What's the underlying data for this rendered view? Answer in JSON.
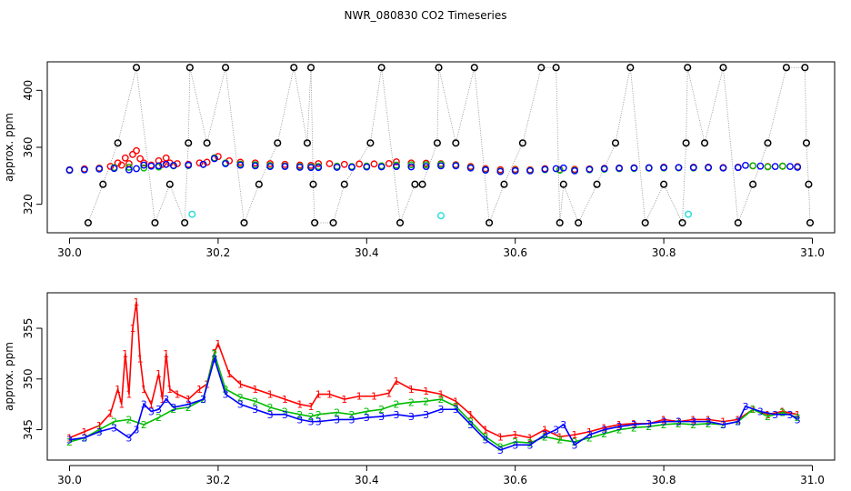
{
  "figure_title": "NWR_080830  CO2 Timeseries",
  "colors": {
    "background": "#ffffff",
    "axis": "#000000",
    "outlier": "#000000",
    "level1": "#ff0000",
    "level2": "#00bb00",
    "level3": "#0000ff",
    "cyan": "#33dddd",
    "connector": "#888888"
  },
  "chart_data": [
    {
      "type": "scatter",
      "title": "",
      "ylabel": "approx. ppm",
      "xlim": [
        29.97,
        31.03
      ],
      "ylim": [
        300,
        420
      ],
      "xticks": [
        30.0,
        30.2,
        30.4,
        30.6,
        30.8,
        31.0
      ],
      "xtick_labels": [
        "30.0",
        "30.2",
        "30.4",
        "30.6",
        "30.8",
        "31.0"
      ],
      "yticks": [
        320,
        360,
        400
      ],
      "ytick_labels": [
        "320",
        "360",
        "400"
      ],
      "lines_connect_points": true,
      "series": [
        {
          "marker": "circle",
          "color": "#000000",
          "points": [
            [
              30.025,
              307
            ],
            [
              30.045,
              334
            ],
            [
              30.065,
              363
            ],
            [
              30.09,
              416
            ],
            [
              30.115,
              307
            ],
            [
              30.135,
              334
            ],
            [
              30.155,
              307
            ],
            [
              30.16,
              363
            ],
            [
              30.162,
              416
            ],
            [
              30.185,
              363
            ],
            [
              30.21,
              416
            ],
            [
              30.235,
              307
            ],
            [
              30.255,
              334
            ],
            [
              30.28,
              363
            ],
            [
              30.302,
              416
            ],
            [
              30.32,
              363
            ],
            [
              30.325,
              416
            ],
            [
              30.328,
              334
            ],
            [
              30.33,
              307
            ],
            [
              30.355,
              307
            ],
            [
              30.37,
              334
            ],
            [
              30.405,
              363
            ],
            [
              30.42,
              416
            ],
            [
              30.445,
              307
            ],
            [
              30.465,
              334
            ],
            [
              30.475,
              334
            ],
            [
              30.495,
              363
            ],
            [
              30.497,
              416
            ],
            [
              30.52,
              363
            ],
            [
              30.545,
              416
            ],
            [
              30.565,
              307
            ],
            [
              30.585,
              334
            ],
            [
              30.61,
              363
            ],
            [
              30.635,
              416
            ],
            [
              30.655,
              416
            ],
            [
              30.66,
              307
            ],
            [
              30.665,
              334
            ],
            [
              30.685,
              307
            ],
            [
              30.71,
              334
            ],
            [
              30.735,
              363
            ],
            [
              30.755,
              416
            ],
            [
              30.775,
              307
            ],
            [
              30.8,
              334
            ],
            [
              30.825,
              307
            ],
            [
              30.83,
              363
            ],
            [
              30.832,
              416
            ],
            [
              30.855,
              363
            ],
            [
              30.88,
              416
            ],
            [
              30.9,
              307
            ],
            [
              30.92,
              334
            ],
            [
              30.94,
              363
            ],
            [
              30.965,
              416
            ],
            [
              30.99,
              416
            ],
            [
              30.992,
              363
            ],
            [
              30.995,
              334
            ],
            [
              30.997,
              307
            ]
          ]
        },
        {
          "marker": "circle",
          "color": "#33dddd",
          "points": [
            [
              30.165,
              313
            ],
            [
              30.5,
              312
            ],
            [
              30.833,
              313
            ]
          ]
        }
      ]
    },
    {
      "type": "line",
      "title": "",
      "ylabel": "approx. ppm",
      "xlim": [
        29.97,
        31.03
      ],
      "ylim": [
        342,
        358.5
      ],
      "xticks": [
        30.0,
        30.2,
        30.4,
        30.6,
        30.8,
        31.0
      ],
      "xtick_labels": [
        "30.0",
        "30.2",
        "30.4",
        "30.6",
        "30.8",
        "31.0"
      ],
      "yticks": [
        345,
        350,
        355
      ],
      "ytick_labels": [
        "345",
        "350",
        "355"
      ],
      "series": [
        {
          "marker": "1",
          "color": "#ff0000",
          "points": [
            [
              30.0,
              344.2
            ],
            [
              30.02,
              344.8
            ],
            [
              30.04,
              345.4
            ],
            [
              30.055,
              346.6
            ],
            [
              30.065,
              349.0
            ],
            [
              30.07,
              347.5
            ],
            [
              30.075,
              352.5
            ],
            [
              30.08,
              348.5
            ],
            [
              30.085,
              355.0
            ],
            [
              30.09,
              357.6
            ],
            [
              30.095,
              352.0
            ],
            [
              30.1,
              349.0
            ],
            [
              30.11,
              347.5
            ],
            [
              30.12,
              350.5
            ],
            [
              30.125,
              348.0
            ],
            [
              30.13,
              352.5
            ],
            [
              30.135,
              349.0
            ],
            [
              30.145,
              348.5
            ],
            [
              30.16,
              348.0
            ],
            [
              30.175,
              349.0
            ],
            [
              30.185,
              349.5
            ],
            [
              30.195,
              352.6
            ],
            [
              30.2,
              353.5
            ],
            [
              30.215,
              350.5
            ],
            [
              30.23,
              349.5
            ],
            [
              30.25,
              349.0
            ],
            [
              30.27,
              348.5
            ],
            [
              30.29,
              348.0
            ],
            [
              30.31,
              347.5
            ],
            [
              30.325,
              347.3
            ],
            [
              30.335,
              348.5
            ],
            [
              30.35,
              348.5
            ],
            [
              30.37,
              348.0
            ],
            [
              30.39,
              348.3
            ],
            [
              30.41,
              348.3
            ],
            [
              30.43,
              348.6
            ],
            [
              30.44,
              349.8
            ],
            [
              30.46,
              349.0
            ],
            [
              30.48,
              348.8
            ],
            [
              30.5,
              348.5
            ],
            [
              30.52,
              347.8
            ],
            [
              30.54,
              346.5
            ],
            [
              30.56,
              345.0
            ],
            [
              30.58,
              344.3
            ],
            [
              30.6,
              344.5
            ],
            [
              30.62,
              344.2
            ],
            [
              30.64,
              345.0
            ],
            [
              30.66,
              344.3
            ],
            [
              30.68,
              344.5
            ],
            [
              30.7,
              344.8
            ],
            [
              30.72,
              345.2
            ],
            [
              30.74,
              345.5
            ],
            [
              30.76,
              345.6
            ],
            [
              30.78,
              345.6
            ],
            [
              30.8,
              346.0
            ],
            [
              30.82,
              345.8
            ],
            [
              30.84,
              346.0
            ],
            [
              30.86,
              346.0
            ],
            [
              30.88,
              345.8
            ],
            [
              30.9,
              346.0
            ],
            [
              30.92,
              347.0
            ],
            [
              30.94,
              346.5
            ],
            [
              30.96,
              346.8
            ],
            [
              30.98,
              346.5
            ]
          ]
        },
        {
          "marker": "2",
          "color": "#00bb00",
          "points": [
            [
              30.0,
              343.8
            ],
            [
              30.02,
              344.2
            ],
            [
              30.04,
              345.0
            ],
            [
              30.06,
              345.8
            ],
            [
              30.08,
              346.0
            ],
            [
              30.1,
              345.5
            ],
            [
              30.12,
              346.2
            ],
            [
              30.14,
              347.0
            ],
            [
              30.16,
              347.2
            ],
            [
              30.18,
              348.0
            ],
            [
              30.195,
              352.5
            ],
            [
              30.21,
              349.0
            ],
            [
              30.23,
              348.2
            ],
            [
              30.25,
              347.8
            ],
            [
              30.27,
              347.2
            ],
            [
              30.29,
              346.8
            ],
            [
              30.31,
              346.5
            ],
            [
              30.325,
              346.3
            ],
            [
              30.335,
              346.5
            ],
            [
              30.36,
              346.7
            ],
            [
              30.38,
              346.5
            ],
            [
              30.4,
              346.8
            ],
            [
              30.42,
              347.0
            ],
            [
              30.44,
              347.5
            ],
            [
              30.46,
              347.7
            ],
            [
              30.48,
              347.8
            ],
            [
              30.5,
              348.0
            ],
            [
              30.52,
              347.3
            ],
            [
              30.54,
              345.8
            ],
            [
              30.56,
              344.3
            ],
            [
              30.58,
              343.3
            ],
            [
              30.6,
              343.8
            ],
            [
              30.62,
              343.7
            ],
            [
              30.64,
              344.3
            ],
            [
              30.66,
              344.0
            ],
            [
              30.68,
              343.8
            ],
            [
              30.7,
              344.2
            ],
            [
              30.72,
              344.6
            ],
            [
              30.74,
              345.0
            ],
            [
              30.76,
              345.2
            ],
            [
              30.78,
              345.3
            ],
            [
              30.8,
              345.5
            ],
            [
              30.82,
              345.6
            ],
            [
              30.84,
              345.5
            ],
            [
              30.86,
              345.6
            ],
            [
              30.88,
              345.5
            ],
            [
              30.9,
              345.8
            ],
            [
              30.92,
              347.0
            ],
            [
              30.94,
              346.3
            ],
            [
              30.96,
              346.7
            ],
            [
              30.98,
              346.2
            ]
          ]
        },
        {
          "marker": "3",
          "color": "#0000ff",
          "points": [
            [
              30.0,
              344.0
            ],
            [
              30.02,
              344.2
            ],
            [
              30.04,
              344.8
            ],
            [
              30.06,
              345.2
            ],
            [
              30.08,
              344.2
            ],
            [
              30.09,
              345.0
            ],
            [
              30.1,
              347.5
            ],
            [
              30.11,
              346.8
            ],
            [
              30.12,
              347.0
            ],
            [
              30.13,
              348.0
            ],
            [
              30.14,
              347.2
            ],
            [
              30.16,
              347.5
            ],
            [
              30.18,
              348.0
            ],
            [
              30.195,
              352.0
            ],
            [
              30.21,
              348.5
            ],
            [
              30.23,
              347.5
            ],
            [
              30.25,
              347.0
            ],
            [
              30.27,
              346.5
            ],
            [
              30.29,
              346.5
            ],
            [
              30.31,
              346.0
            ],
            [
              30.325,
              345.8
            ],
            [
              30.335,
              345.8
            ],
            [
              30.36,
              346.0
            ],
            [
              30.38,
              346.0
            ],
            [
              30.4,
              346.2
            ],
            [
              30.42,
              346.3
            ],
            [
              30.44,
              346.5
            ],
            [
              30.46,
              346.3
            ],
            [
              30.48,
              346.5
            ],
            [
              30.5,
              347.0
            ],
            [
              30.52,
              347.0
            ],
            [
              30.54,
              345.5
            ],
            [
              30.56,
              344.0
            ],
            [
              30.58,
              343.0
            ],
            [
              30.6,
              343.5
            ],
            [
              30.62,
              343.5
            ],
            [
              30.64,
              344.5
            ],
            [
              30.655,
              345.0
            ],
            [
              30.665,
              345.5
            ],
            [
              30.68,
              343.5
            ],
            [
              30.7,
              344.5
            ],
            [
              30.72,
              345.0
            ],
            [
              30.74,
              345.3
            ],
            [
              30.76,
              345.5
            ],
            [
              30.78,
              345.6
            ],
            [
              30.8,
              345.8
            ],
            [
              30.82,
              345.8
            ],
            [
              30.84,
              345.8
            ],
            [
              30.86,
              345.8
            ],
            [
              30.88,
              345.5
            ],
            [
              30.9,
              345.8
            ],
            [
              30.91,
              347.3
            ],
            [
              30.93,
              346.8
            ],
            [
              30.95,
              346.5
            ],
            [
              30.97,
              346.5
            ],
            [
              30.98,
              346.0
            ]
          ]
        }
      ]
    }
  ]
}
